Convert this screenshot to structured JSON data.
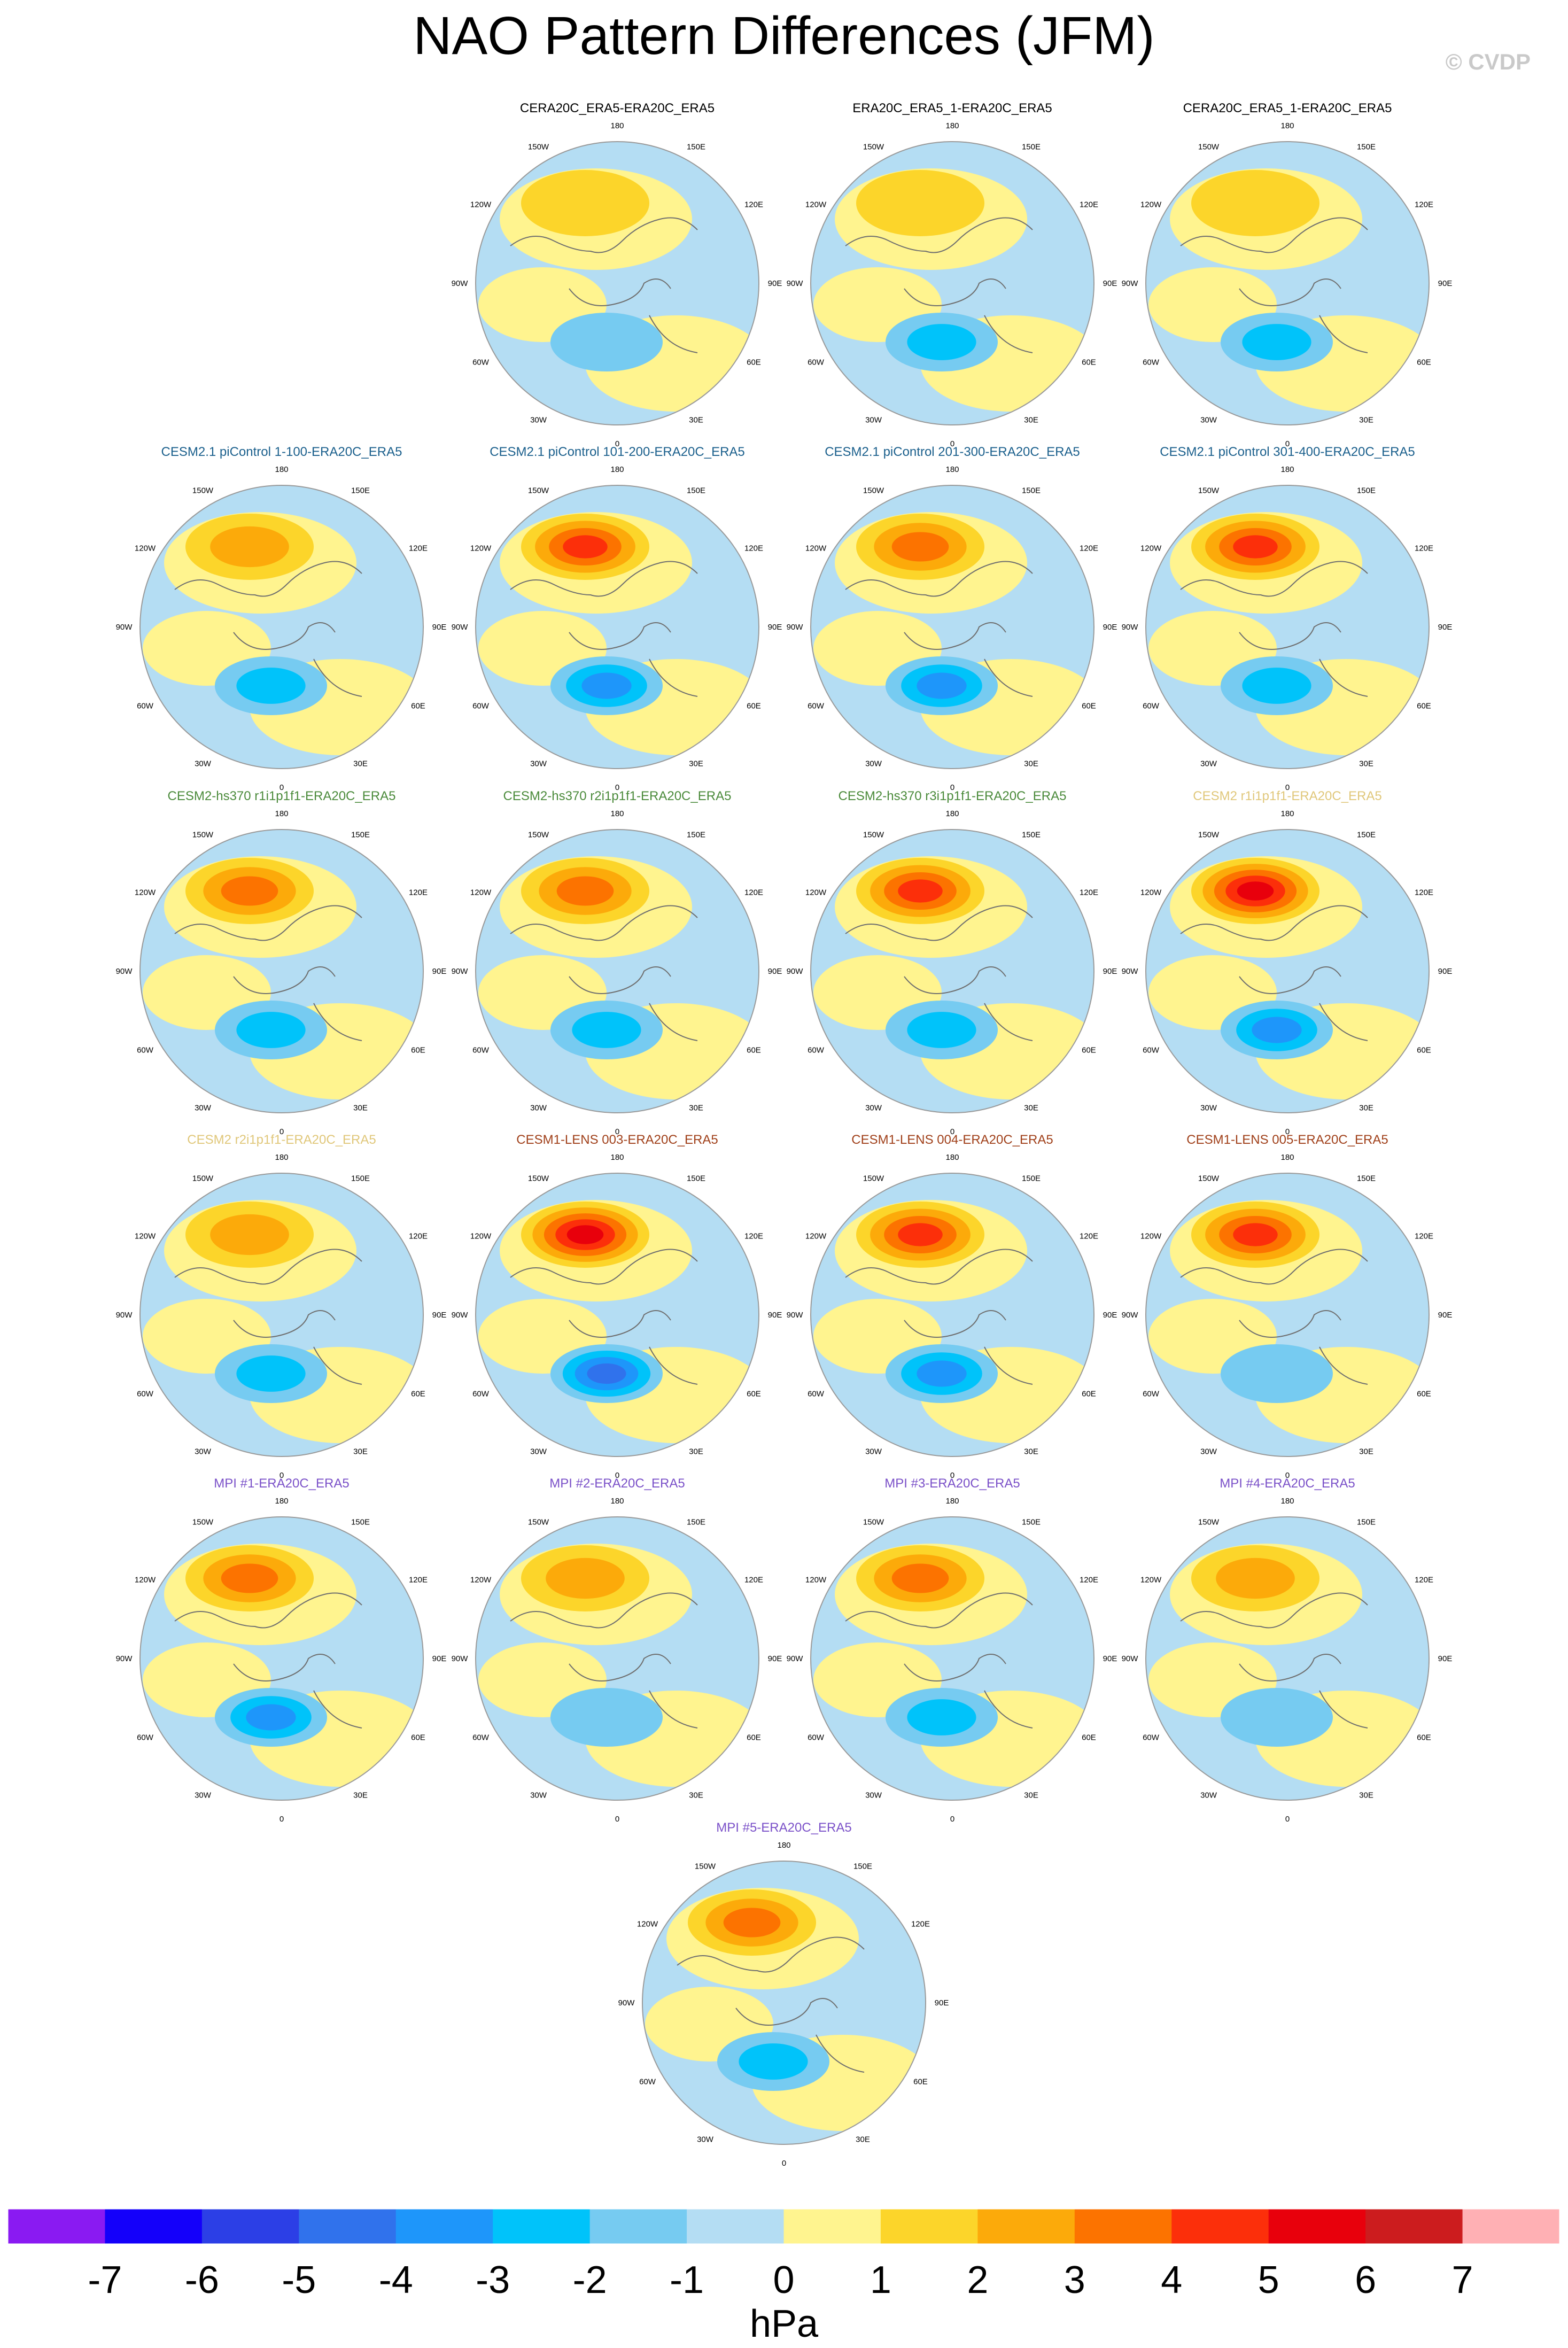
{
  "title": "NAO Pattern Differences (JFM)",
  "copyright": "© CVDP",
  "chart_data": {
    "type": "heatmap",
    "projection": "north-polar-stereographic",
    "variable_unit": "hPa",
    "longitude_labels": [
      "180",
      "150E",
      "120E",
      "90E",
      "60E",
      "30E",
      "0",
      "30W",
      "60W",
      "90W",
      "120W",
      "150W"
    ],
    "colorbar": {
      "labels": [
        "-7",
        "-6",
        "-5",
        "-4",
        "-3",
        "-2",
        "-1",
        "0",
        "1",
        "2",
        "3",
        "4",
        "5",
        "6",
        "7"
      ],
      "levels": [
        -7,
        -6,
        -5,
        -4,
        -3,
        -2,
        -1,
        0,
        1,
        2,
        3,
        4,
        5,
        6,
        7
      ],
      "colors": [
        "#8a1af2",
        "#1400fa",
        "#2c3fe6",
        "#3072ec",
        "#1e96fa",
        "#00c3fa",
        "#76cbf1",
        "#b4ddf3",
        "#fff48f",
        "#fcd52a",
        "#fcaa0a",
        "#fc7300",
        "#fc2f0a",
        "#e8000c",
        "#cc1c1e",
        "#ffb0b4"
      ],
      "unit": "hPa"
    },
    "panels": [
      {
        "title": "CERA20C_ERA5-ERA20C_ERA5",
        "title_color": "#000000",
        "max_diff": 1,
        "min_diff": -1
      },
      {
        "title": "ERA20C_ERA5_1-ERA20C_ERA5",
        "title_color": "#000000",
        "max_diff": 1,
        "min_diff": -2
      },
      {
        "title": "CERA20C_ERA5_1-ERA20C_ERA5",
        "title_color": "#000000",
        "max_diff": 1,
        "min_diff": -2
      },
      {
        "title": "CESM2.1 piControl 1-100-ERA20C_ERA5",
        "title_color": "#1a5f8c",
        "max_diff": 2,
        "min_diff": -2
      },
      {
        "title": "CESM2.1 piControl 101-200-ERA20C_ERA5",
        "title_color": "#1a5f8c",
        "max_diff": 4,
        "min_diff": -3
      },
      {
        "title": "CESM2.1 piControl 201-300-ERA20C_ERA5",
        "title_color": "#1a5f8c",
        "max_diff": 3,
        "min_diff": -3
      },
      {
        "title": "CESM2.1 piControl 301-400-ERA20C_ERA5",
        "title_color": "#1a5f8c",
        "max_diff": 4,
        "min_diff": -2
      },
      {
        "title": "CESM2-hs370 r1i1p1f1-ERA20C_ERA5",
        "title_color": "#4a8a3a",
        "max_diff": 3,
        "min_diff": -2
      },
      {
        "title": "CESM2-hs370 r2i1p1f1-ERA20C_ERA5",
        "title_color": "#4a8a3a",
        "max_diff": 3,
        "min_diff": -2
      },
      {
        "title": "CESM2-hs370 r3i1p1f1-ERA20C_ERA5",
        "title_color": "#4a8a3a",
        "max_diff": 4,
        "min_diff": -2
      },
      {
        "title": "CESM2 r1i1p1f1-ERA20C_ERA5",
        "title_color": "#e0c77a",
        "max_diff": 5,
        "min_diff": -3
      },
      {
        "title": "CESM2 r2i1p1f1-ERA20C_ERA5",
        "title_color": "#e0c77a",
        "max_diff": 2,
        "min_diff": -2
      },
      {
        "title": "CESM1-LENS 003-ERA20C_ERA5",
        "title_color": "#a0401a",
        "max_diff": 5,
        "min_diff": -4
      },
      {
        "title": "CESM1-LENS 004-ERA20C_ERA5",
        "title_color": "#a0401a",
        "max_diff": 4,
        "min_diff": -3
      },
      {
        "title": "CESM1-LENS 005-ERA20C_ERA5",
        "title_color": "#a0401a",
        "max_diff": 4,
        "min_diff": -1
      },
      {
        "title": "MPI #1-ERA20C_ERA5",
        "title_color": "#7a50c8",
        "max_diff": 3,
        "min_diff": -3
      },
      {
        "title": "MPI #2-ERA20C_ERA5",
        "title_color": "#7a50c8",
        "max_diff": 2,
        "min_diff": -1
      },
      {
        "title": "MPI #3-ERA20C_ERA5",
        "title_color": "#7a50c8",
        "max_diff": 3,
        "min_diff": -2
      },
      {
        "title": "MPI #4-ERA20C_ERA5",
        "title_color": "#7a50c8",
        "max_diff": 2,
        "min_diff": -1
      },
      {
        "title": "MPI #5-ERA20C_ERA5",
        "title_color": "#7a50c8",
        "max_diff": 3,
        "min_diff": -2
      }
    ]
  }
}
